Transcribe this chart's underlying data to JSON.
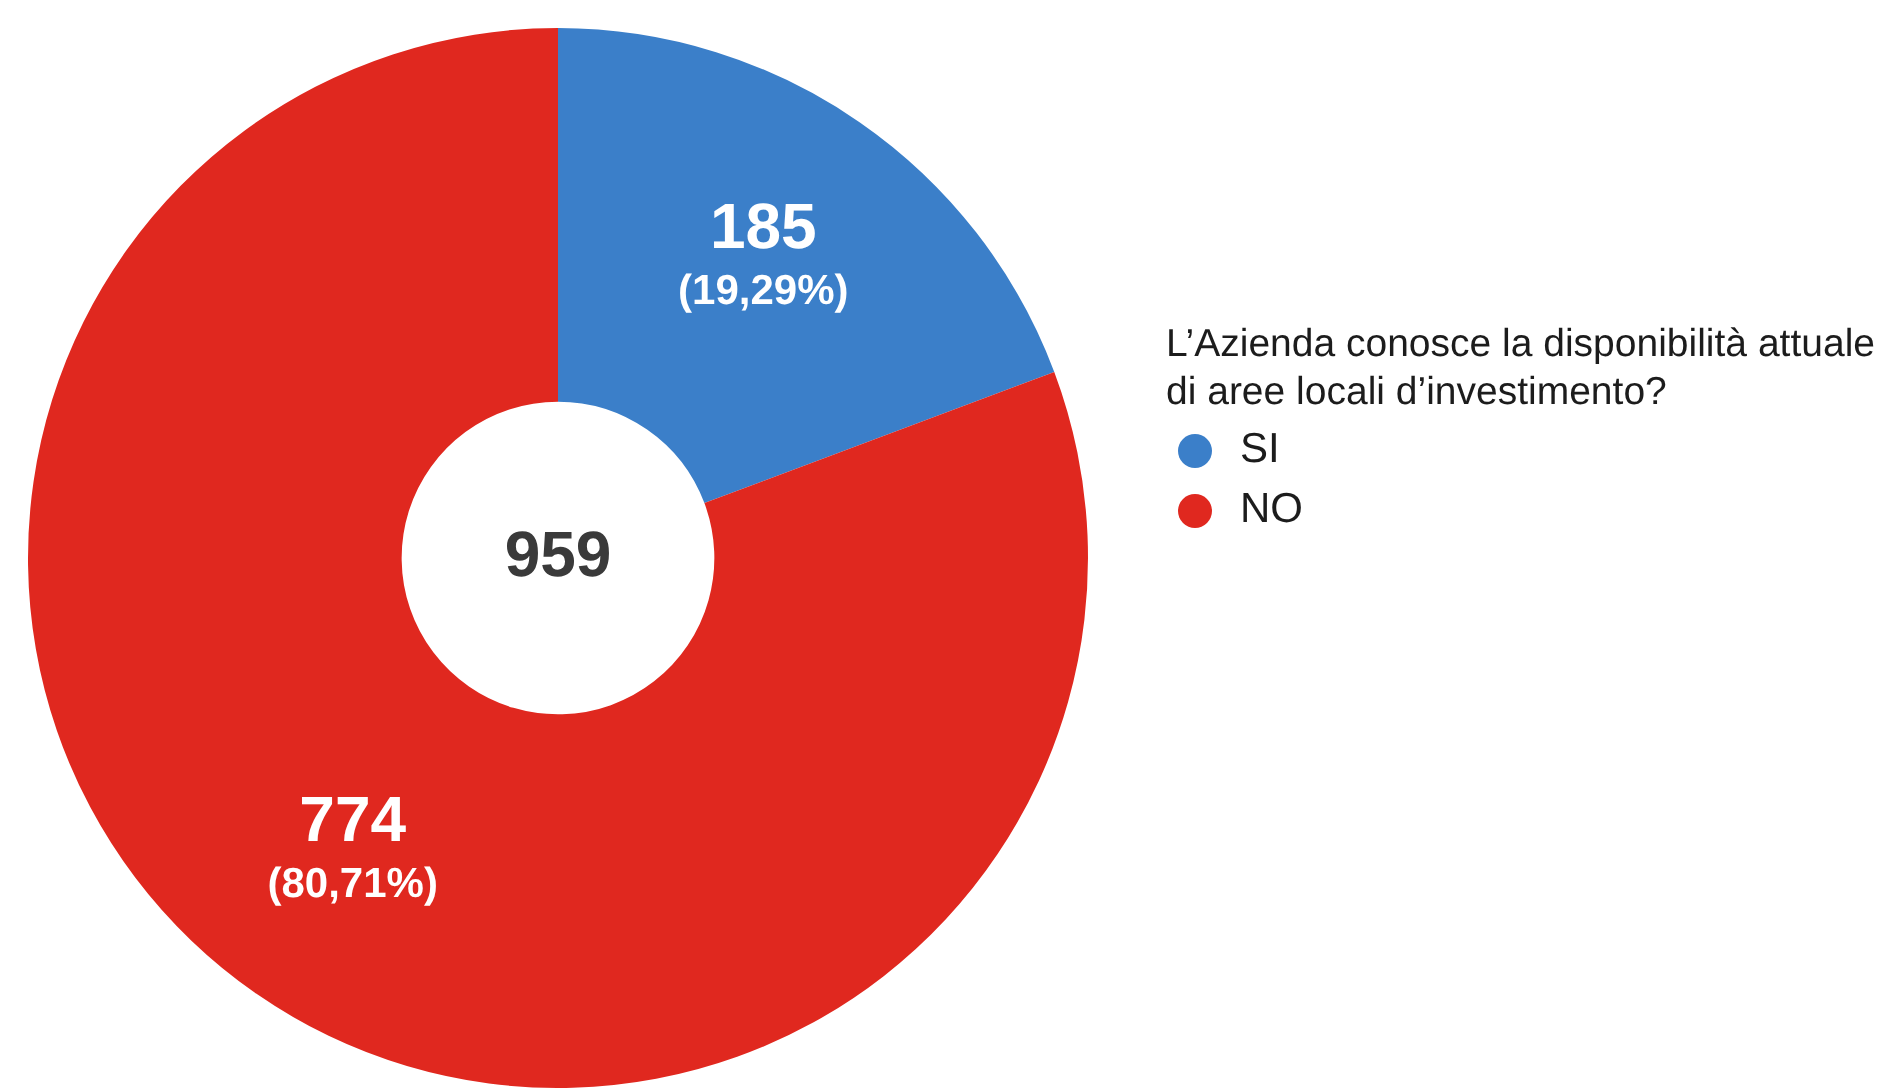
{
  "chart_data": {
    "type": "donut",
    "categories": [
      "SI",
      "NO"
    ],
    "values": [
      185,
      774
    ],
    "colors": [
      "#3b7fc9",
      "#e0281f"
    ],
    "value_labels": [
      "185\n(19,29%)",
      "774\n(80,71%)"
    ],
    "annotations": [
      "959"
    ],
    "legend_title": "L’Azienda conosce la disponibilità attuale di aree locali d’investimento?",
    "legend": "right"
  }
}
